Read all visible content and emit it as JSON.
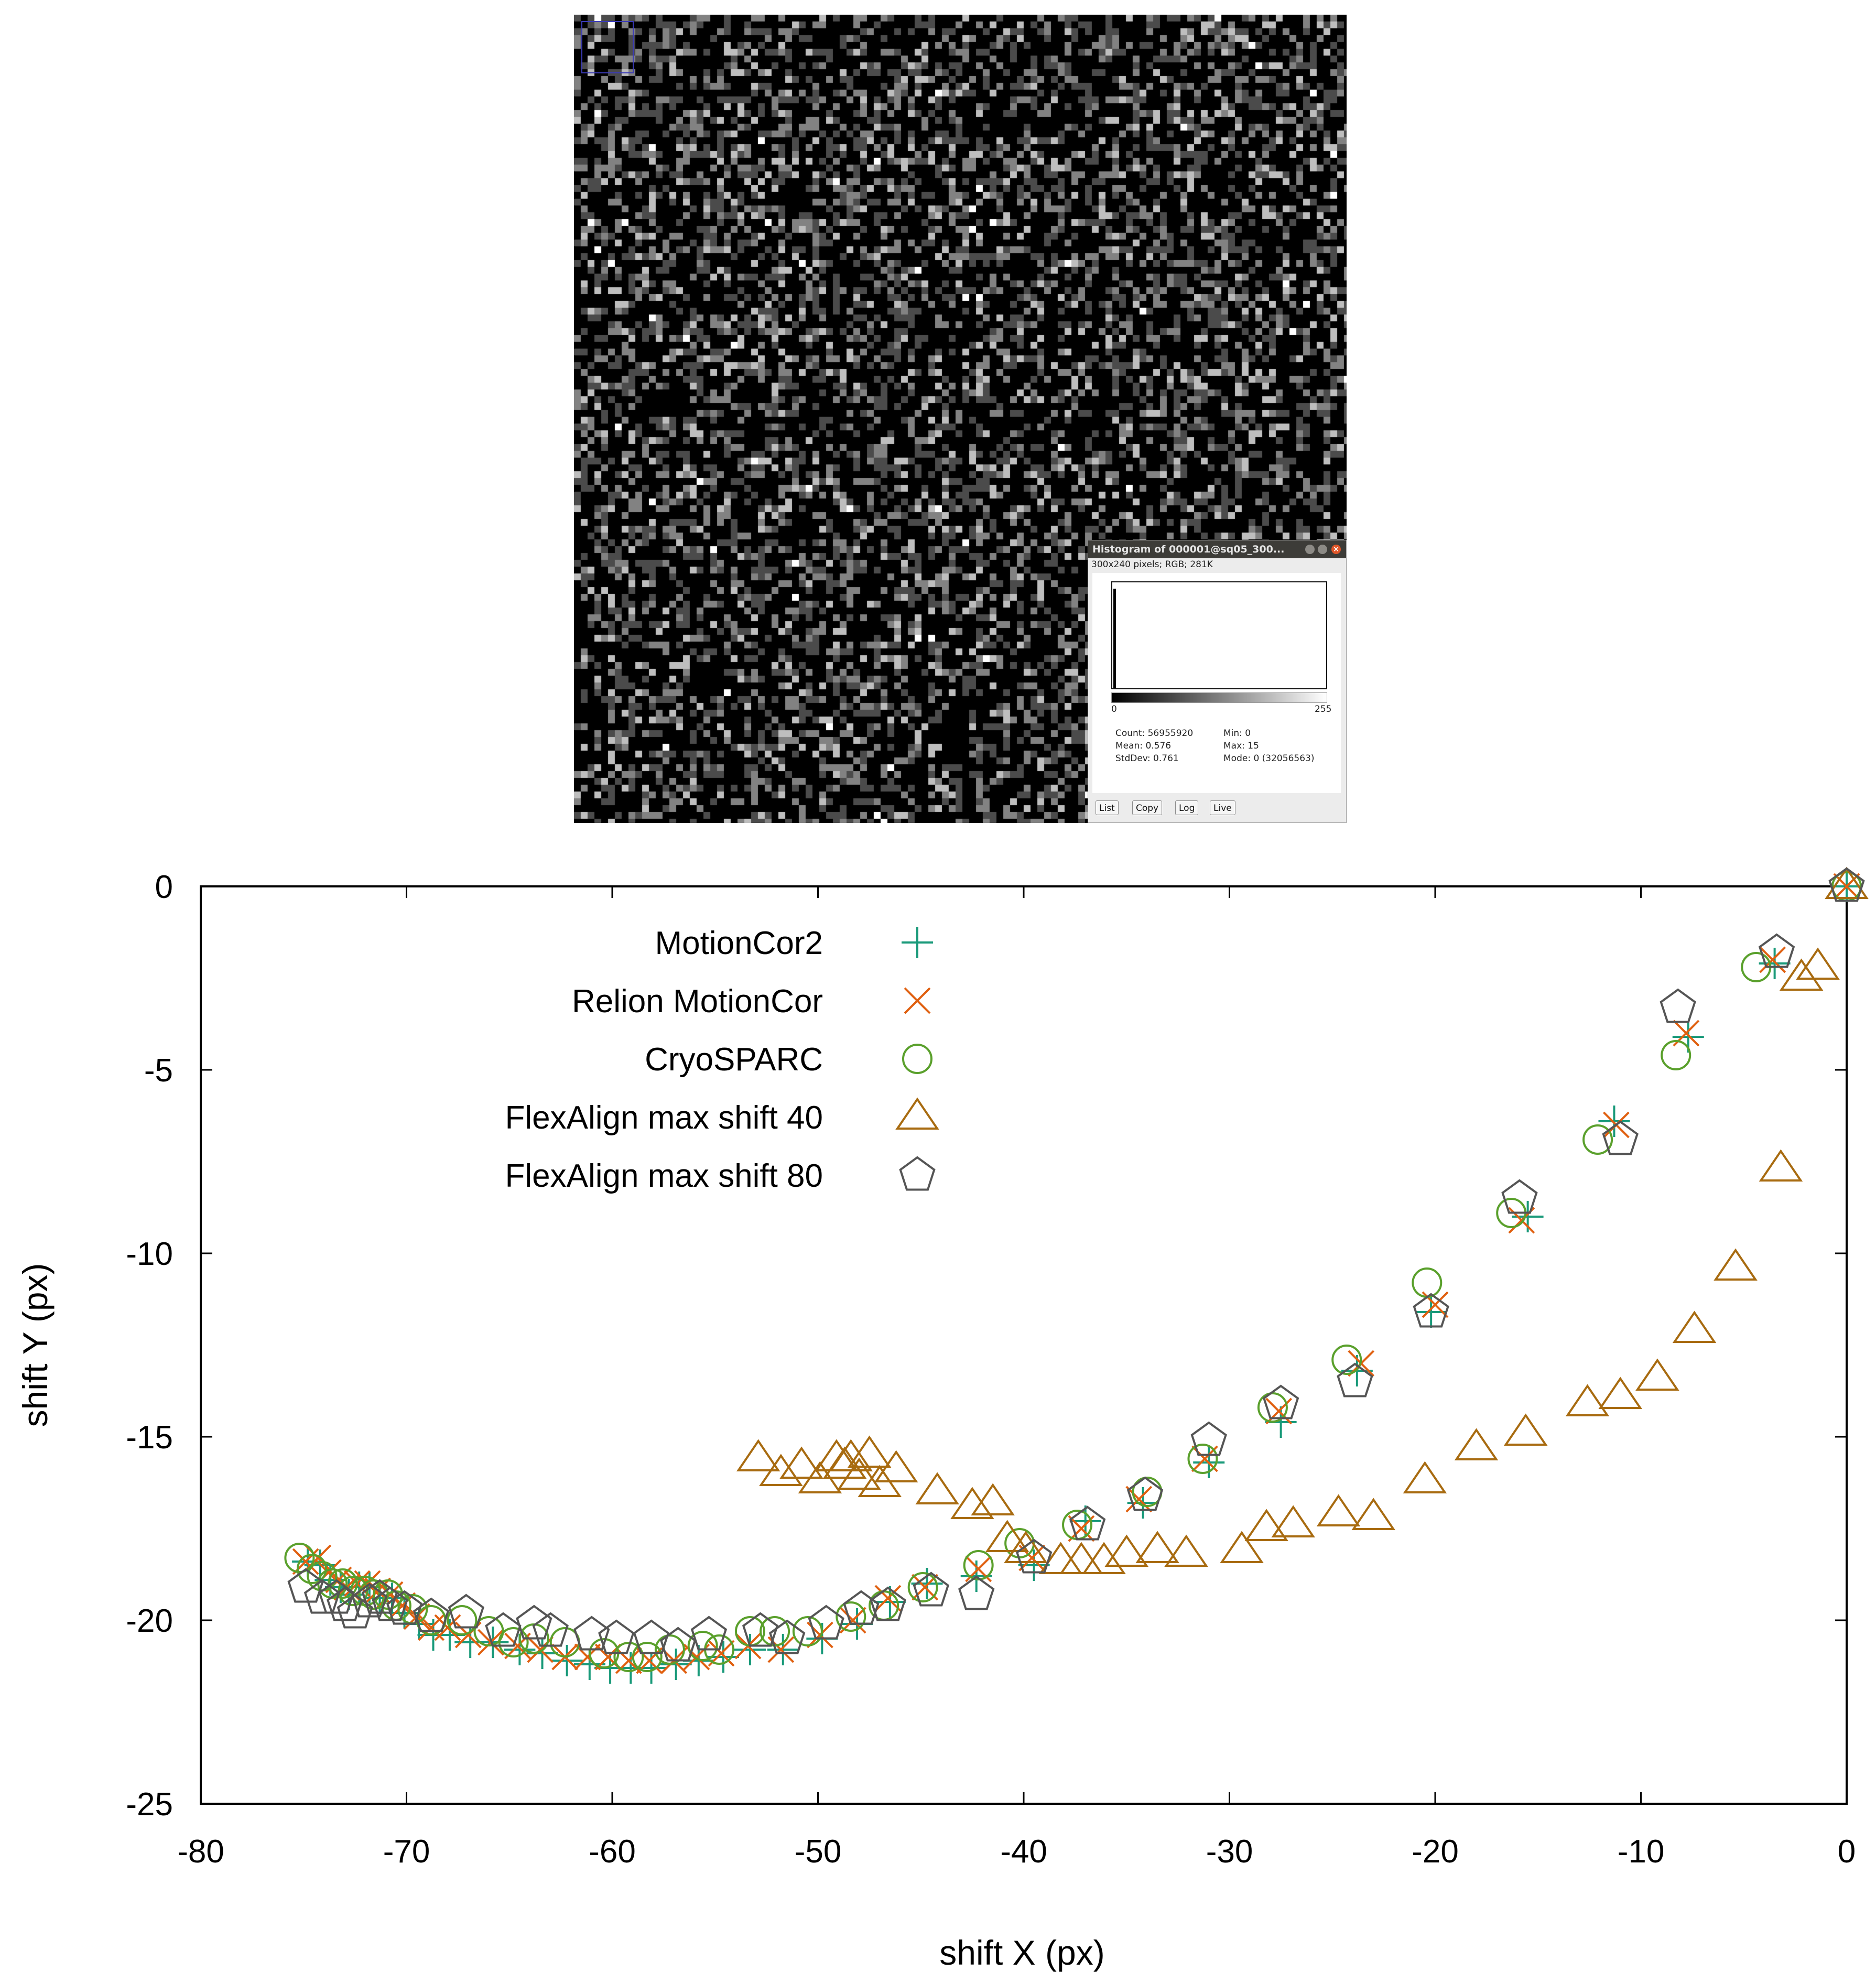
{
  "histogram": {
    "title": "Histogram of 000001@sq05_300...",
    "info": "300x240 pixels; RGB; 281K",
    "axis_min": "0",
    "axis_max": "255",
    "count": "Count: 56955920",
    "mean": "Mean: 0.576",
    "stddev": "StdDev: 0.761",
    "min": "Min: 0",
    "max": "Max: 15",
    "mode": "Mode: 0 (32056563)",
    "buttons": [
      "List",
      "Copy",
      "Log",
      "Live"
    ]
  },
  "chart_data": {
    "type": "scatter",
    "xlabel": "shift X (px)",
    "ylabel": "shift Y (px)",
    "xlim": [
      -80,
      0
    ],
    "ylim": [
      -25,
      0
    ],
    "xticks": [
      -80,
      -70,
      -60,
      -50,
      -40,
      -30,
      -20,
      -10,
      0
    ],
    "yticks": [
      0,
      -5,
      -10,
      -15,
      -20,
      -25
    ],
    "grid": false,
    "legend_position": "top-left",
    "series": [
      {
        "name": "MotionCor2",
        "marker": "plus",
        "color": "#1a9a7a",
        "x": [
          0,
          -3.5,
          -7.7,
          -11.3,
          -15.5,
          -20.2,
          -23.8,
          -27.5,
          -31,
          -34.2,
          -37,
          -39.5,
          -42.3,
          -44.7,
          -46.5,
          -48.1,
          -49.8,
          -51.7,
          -53.3,
          -54.6,
          -55.8,
          -56.9,
          -58.1,
          -59.1,
          -60.1,
          -61.1,
          -62.2,
          -63.4,
          -64.5,
          -65.8,
          -66.9,
          -67.9,
          -68.7,
          -69.4,
          -70.1,
          -70.7,
          -71.3,
          -71.8,
          -72.3,
          -72.8,
          -73.2,
          -73.7,
          -74.2,
          -74.8
        ],
        "y": [
          0,
          -2.1,
          -4.1,
          -6.4,
          -9,
          -11.6,
          -13.2,
          -14.6,
          -15.7,
          -16.8,
          -17.3,
          -18.5,
          -18.8,
          -19,
          -19.5,
          -20.1,
          -20.5,
          -20.8,
          -20.8,
          -21,
          -21.1,
          -21.2,
          -21.3,
          -21.3,
          -21.3,
          -21.2,
          -21.1,
          -20.9,
          -20.8,
          -20.6,
          -20.6,
          -20.4,
          -20.4,
          -20.1,
          -19.8,
          -19.4,
          -19.4,
          -19.1,
          -19.1,
          -19.3,
          -19.1,
          -18.9,
          -18.5,
          -18.4
        ]
      },
      {
        "name": "Relion MotionCor",
        "marker": "cross",
        "color": "#e06010",
        "x": [
          0,
          -3.6,
          -7.8,
          -11.2,
          -15.8,
          -20,
          -23.6,
          -27.6,
          -31.2,
          -34.4,
          -37.2,
          -39.6,
          -42.2,
          -44.8,
          -46.6,
          -48.3,
          -49.9,
          -51.8,
          -53.4,
          -54.7,
          -55.9,
          -57,
          -58.2,
          -59.2,
          -60.2,
          -61.2,
          -62.3,
          -63.5,
          -64.6,
          -65.9,
          -67,
          -68,
          -68.8,
          -69.5,
          -70.2,
          -70.8,
          -71.4,
          -71.9,
          -72.4,
          -72.9,
          -73.3,
          -73.8,
          -74.3,
          -74.9
        ],
        "y": [
          0,
          -2,
          -4,
          -6.5,
          -9.1,
          -11.4,
          -13,
          -14.3,
          -15.6,
          -16.7,
          -17.5,
          -18.3,
          -18.6,
          -19.1,
          -19.4,
          -20,
          -20.4,
          -20.8,
          -20.7,
          -20.9,
          -21,
          -21.1,
          -21.1,
          -21.1,
          -21,
          -21,
          -21,
          -20.8,
          -20.7,
          -20.6,
          -20.4,
          -20.2,
          -20.2,
          -19.9,
          -19.6,
          -19.3,
          -19.2,
          -19,
          -19,
          -19.1,
          -18.9,
          -18.7,
          -18.3,
          -18.4
        ]
      },
      {
        "name": "CryoSPARC",
        "marker": "circle",
        "color": "#5aa02c",
        "x": [
          0,
          -4.4,
          -8.3,
          -12.1,
          -16.3,
          -20.4,
          -24.3,
          -27.9,
          -31.3,
          -34,
          -37.4,
          -40.2,
          -42.2,
          -44.9,
          -46.8,
          -48.4,
          -50.5,
          -52.1,
          -53.3,
          -54.8,
          -55.6,
          -57.2,
          -58.3,
          -59.2,
          -60.4,
          -62.3,
          -63.8,
          -64.8,
          -66,
          -67.3,
          -68.8,
          -69.7,
          -70.5,
          -70.9,
          -71.6,
          -72,
          -72.6,
          -73.1,
          -73.6,
          -74.1,
          -74.6,
          -75.2
        ],
        "y": [
          0,
          -2.2,
          -4.6,
          -6.9,
          -8.9,
          -10.8,
          -12.9,
          -14.2,
          -15.6,
          -16.5,
          -17.4,
          -17.9,
          -18.5,
          -19.1,
          -19.6,
          -19.9,
          -20.3,
          -20.3,
          -20.3,
          -20.8,
          -20.7,
          -20.8,
          -21,
          -21,
          -20.9,
          -20.6,
          -20.5,
          -20.6,
          -20.3,
          -20,
          -20,
          -19.7,
          -19.6,
          -19.3,
          -19.3,
          -19.2,
          -19.2,
          -19,
          -19,
          -18.8,
          -18.6,
          -18.3
        ]
      },
      {
        "name": "FlexAlign max shift 40",
        "marker": "triangle",
        "color": "#a86b10",
        "x": [
          0,
          -1.4,
          -2.2,
          -3.2,
          -5.4,
          -7.4,
          -9.2,
          -11,
          -12.6,
          -15.6,
          -18,
          -20.5,
          -23,
          -24.7,
          -26.9,
          -28.2,
          -29.4,
          -32.1,
          -33.5,
          -35,
          -36.1,
          -37.2,
          -38.2,
          -39.9,
          -40.8,
          -41.5,
          -42.5,
          -44.2,
          -46.2,
          -47,
          -47.5,
          -48,
          -48.4,
          -48.7,
          -49.1,
          -49.9,
          -50.8,
          -51.8,
          -52.9
        ],
        "y": [
          0,
          -2.2,
          -2.5,
          -7.7,
          -10.4,
          -12.1,
          -13.4,
          -13.9,
          -14.1,
          -14.9,
          -15.3,
          -16.2,
          -17.2,
          -17.1,
          -17.4,
          -17.5,
          -18.1,
          -18.2,
          -18.1,
          -18.2,
          -18.4,
          -18.4,
          -18.4,
          -18.1,
          -17.8,
          -16.8,
          -16.9,
          -16.5,
          -15.9,
          -16.3,
          -15.5,
          -16.1,
          -15.6,
          -15.8,
          -15.6,
          -16.2,
          -15.8,
          -16,
          -15.6
        ]
      },
      {
        "name": "FlexAlign max shift 80",
        "marker": "pentagon",
        "color": "#555555",
        "x": [
          0,
          -3.4,
          -8.2,
          -11,
          -15.9,
          -20.2,
          -23.9,
          -27.5,
          -31,
          -34.1,
          -36.9,
          -39.5,
          -42.3,
          -44.5,
          -46.6,
          -47.9,
          -49.6,
          -51.5,
          -52.8,
          -55.3,
          -56.8,
          -58.1,
          -59.8,
          -61,
          -63,
          -63.8,
          -65.3,
          -67.1,
          -68.8,
          -70.1,
          -70.8,
          -71.3,
          -71.8,
          -72.5,
          -73,
          -73.4,
          -74.1,
          -74.9
        ],
        "y": [
          0,
          -1.8,
          -3.3,
          -6.9,
          -8.5,
          -11.6,
          -13.5,
          -14.1,
          -15.1,
          -16.6,
          -17.4,
          -18.3,
          -19.3,
          -19.2,
          -19.6,
          -19.7,
          -20.1,
          -20.5,
          -20.3,
          -20.4,
          -20.7,
          -20.5,
          -20.5,
          -20.4,
          -20.3,
          -20.1,
          -20.3,
          -19.8,
          -19.9,
          -19.7,
          -19.6,
          -19.4,
          -19.5,
          -19.8,
          -19.6,
          -19.4,
          -19.4,
          -19.1
        ]
      }
    ]
  }
}
